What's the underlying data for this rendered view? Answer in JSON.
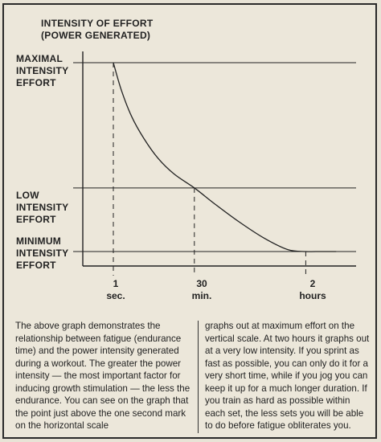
{
  "chart_data": {
    "type": "line",
    "title": "INTENSITY OF EFFORT\n(POWER GENERATED)",
    "y_levels": [
      {
        "label": "MAXIMAL\nINTENSITY\nEFFORT",
        "value": 1.0
      },
      {
        "label": "LOW\nINTENSITY\nEFFORT",
        "value": 0.37
      },
      {
        "label": "MINIMUM\nINTENSITY\nEFFORT",
        "value": 0.05
      }
    ],
    "x_ticks": [
      {
        "number": "1",
        "unit": "sec."
      },
      {
        "number": "30",
        "unit": "min."
      },
      {
        "number": "2",
        "unit": "hours"
      }
    ],
    "series": [
      {
        "points": [
          {
            "t": 0.0,
            "intensity": 1.0
          },
          {
            "t": 0.04,
            "intensity": 0.86
          },
          {
            "t": 0.09,
            "intensity": 0.73
          },
          {
            "t": 0.15,
            "intensity": 0.62
          },
          {
            "t": 0.22,
            "intensity": 0.52
          },
          {
            "t": 0.3,
            "intensity": 0.44
          },
          {
            "t": 0.4,
            "intensity": 0.37
          },
          {
            "t": 0.5,
            "intensity": 0.29
          },
          {
            "t": 0.62,
            "intensity": 0.2
          },
          {
            "t": 0.74,
            "intensity": 0.12
          },
          {
            "t": 0.86,
            "intensity": 0.06
          },
          {
            "t": 0.95,
            "intensity": 0.05
          },
          {
            "t": 1.0,
            "intensity": 0.05
          },
          {
            "t": 1.1,
            "intensity": 0.05
          }
        ]
      }
    ],
    "markers": [
      {
        "tick": 0,
        "t": 0.0,
        "intensity": 1.0
      },
      {
        "tick": 1,
        "t": 0.4,
        "intensity": 0.37
      },
      {
        "tick": 2,
        "t": 0.95,
        "intensity": 0.05
      }
    ]
  },
  "description": {
    "left": "The above graph demonstrates the relationship between fatigue (endurance time) and the power intensity generated during a workout. The greater the power intensity — the most important factor for inducing growth stimulation — the less the endurance. You can see on the graph that the point just above the one second mark on the horizontal scale",
    "right": "graphs out at maximum effort on the vertical scale. At two hours it graphs out at a very low intensity. If you sprint as fast as possible, you can only do it for a very short time, while if you jog you can keep it up for a much longer duration. If you train as hard as possible within each set, the less sets you will be able to do before fatigue obliterates you."
  }
}
